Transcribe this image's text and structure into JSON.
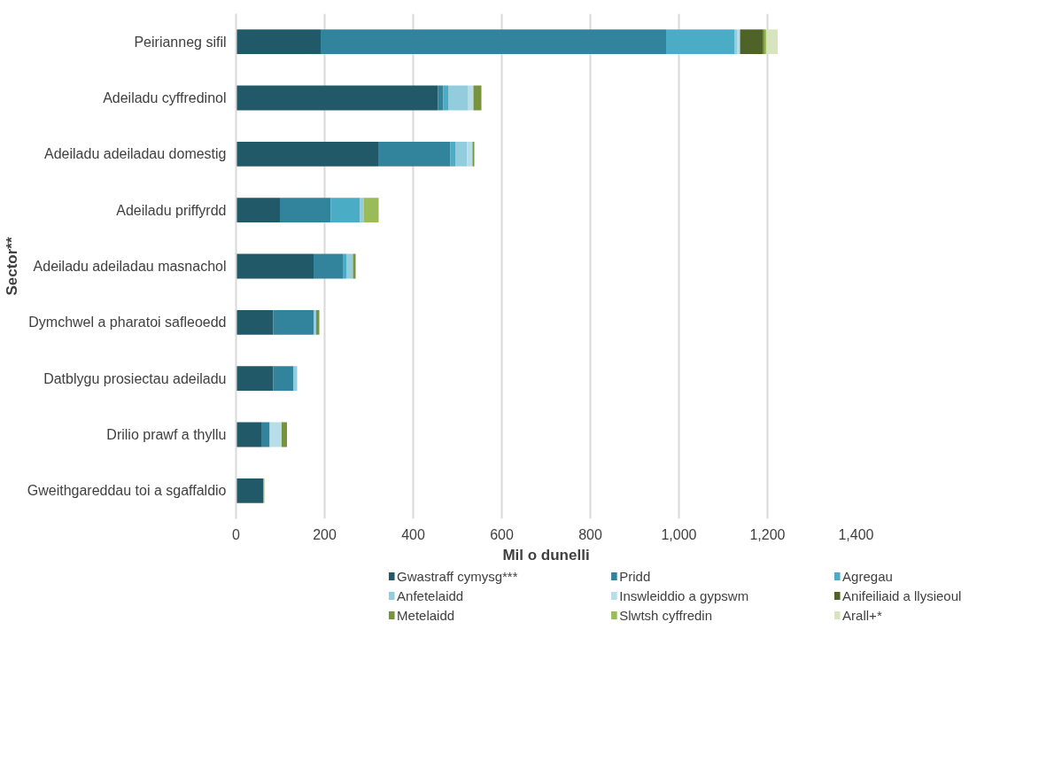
{
  "chart_data": {
    "type": "bar",
    "orientation": "horizontal",
    "stacked": true,
    "xlabel": "Mil o dunelli",
    "ylabel": "Sector**",
    "categories": [
      "Peirianneg sifil",
      "Adeiladu cyffredinol",
      "Adeiladu adeiladau domestig",
      "Adeiladu priffyrdd",
      "Adeiladu adeiladau masnachol",
      "Dymchwel a pharatoi safleoedd",
      "Datblygu prosiectau adeiladu",
      "Drilio prawf a thyllu",
      "Gweithgareddau toi a sgaffaldio"
    ],
    "series": [
      {
        "name": "Gwastraff cymysg***",
        "color": "#215968",
        "values": [
          191,
          456,
          321,
          99,
          175,
          84,
          84,
          57,
          61
        ]
      },
      {
        "name": "Pridd",
        "color": "#31849b",
        "values": [
          780,
          12,
          163,
          115,
          66,
          91,
          46,
          19,
          null
        ]
      },
      {
        "name": "Agregau",
        "color": "#4bacc6",
        "values": [
          154,
          11,
          11,
          66,
          8,
          null,
          null,
          null,
          null
        ]
      },
      {
        "name": "Anfetelaidd",
        "color": "#93cddd",
        "values": [
          6,
          44,
          27,
          8,
          15,
          6,
          8,
          null,
          null
        ]
      },
      {
        "name": "Inswleiddio a gypswm",
        "color": "#b7dee8",
        "values": [
          7,
          13,
          12,
          null,
          null,
          null,
          null,
          27,
          null
        ]
      },
      {
        "name": "Anifeiliaid a llysieoul",
        "color": "#4f6228",
        "values": [
          51,
          null,
          null,
          null,
          null,
          null,
          null,
          null,
          null
        ]
      },
      {
        "name": "Metelaidd",
        "color": "#77933c",
        "values": [
          4,
          18,
          4,
          null,
          6,
          7,
          null,
          12,
          null
        ]
      },
      {
        "name": "Slwtsh cyffredin",
        "color": "#9bbb59",
        "values": [
          4,
          null,
          null,
          34,
          null,
          null,
          null,
          null,
          3
        ]
      },
      {
        "name": "Arall+*",
        "color": "#d7e4bd",
        "values": [
          26,
          null,
          null,
          null,
          null,
          null,
          null,
          null,
          null
        ]
      }
    ],
    "xlim": [
      0,
      1400
    ],
    "xticks": [
      0,
      200,
      400,
      {
        "value": 600,
        "label": "600"
      },
      800,
      {
        "value": 1000,
        "label": "1,000"
      },
      {
        "value": 1200,
        "label": "1,200"
      },
      {
        "value": 1400,
        "label": "1,400"
      }
    ],
    "grid": "x",
    "legend": "bottom"
  }
}
